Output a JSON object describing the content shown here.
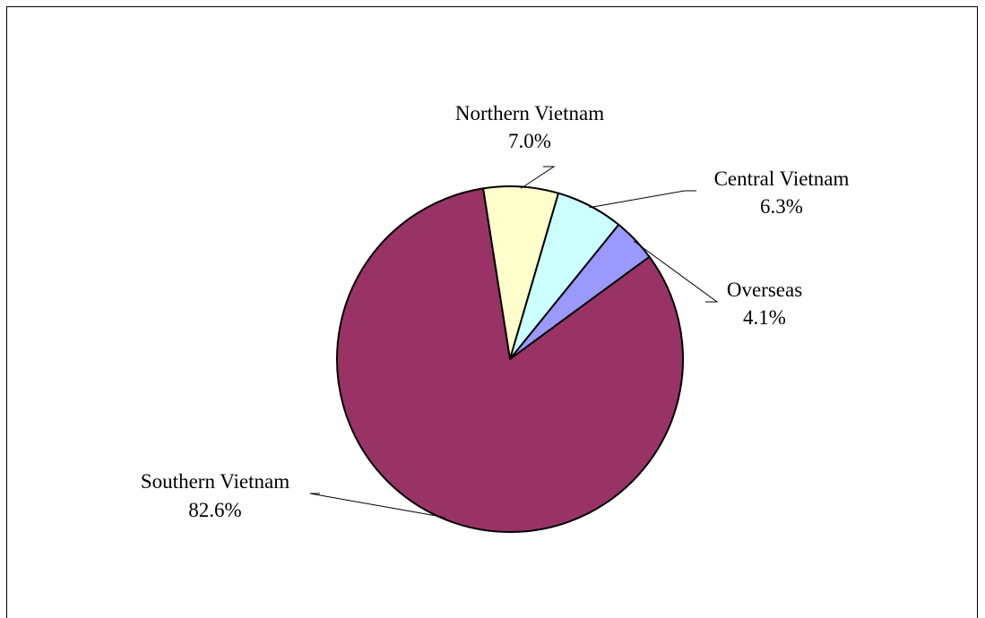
{
  "chart_data": {
    "type": "pie",
    "title": "",
    "slices": [
      {
        "label": "Northern Vietnam",
        "value": 7.0,
        "value_label": "7.0%",
        "color": "#ffffcc"
      },
      {
        "label": "Central Vietnam",
        "value": 6.3,
        "value_label": "6.3%",
        "color": "#ccffff"
      },
      {
        "label": "Overseas",
        "value": 4.1,
        "value_label": "4.1%",
        "color": "#9999ff"
      },
      {
        "label": "Southern Vietnam",
        "value": 82.6,
        "value_label": "82.6%",
        "color": "#993366"
      }
    ],
    "legend": "none",
    "start_angle": "slightly left of 12 o'clock",
    "direction": "clockwise"
  }
}
